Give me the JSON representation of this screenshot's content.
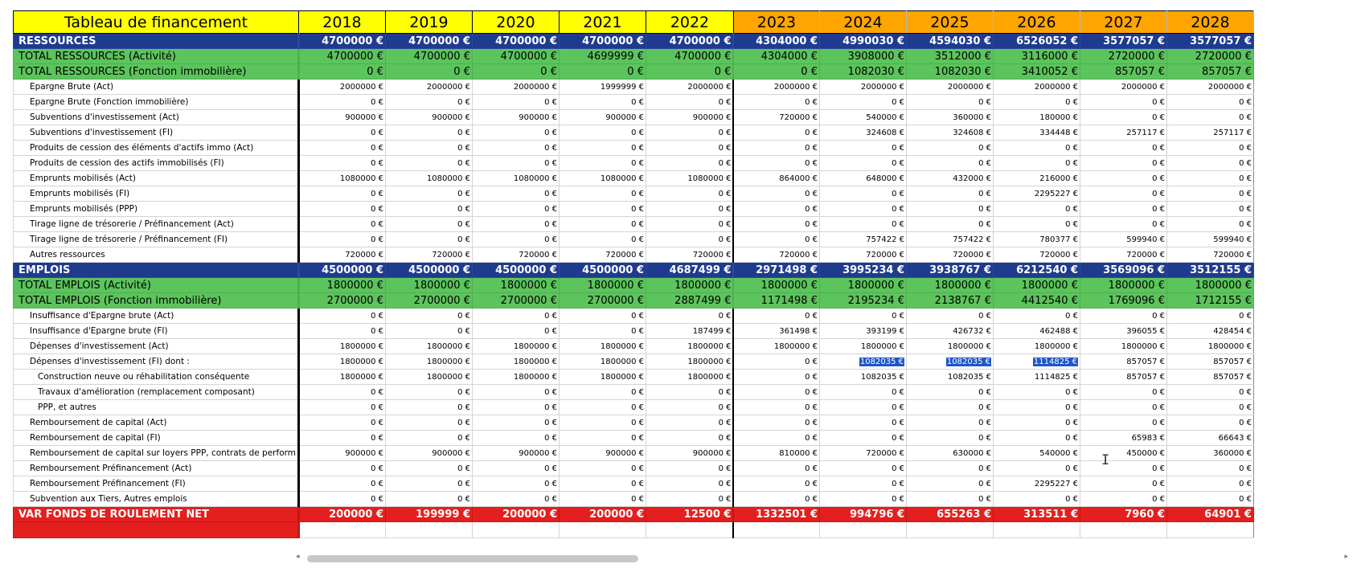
{
  "sheet": {
    "title": "Tableau de financement",
    "years": [
      "2018",
      "2019",
      "2020",
      "2021",
      "2022",
      "2023",
      "2024",
      "2025",
      "2026",
      "2027",
      "2028"
    ],
    "rows": [
      {
        "type": "section",
        "label": "RESSOURCES",
        "values": [
          "4700000 €",
          "4700000 €",
          "4700000 €",
          "4700000 €",
          "4700000 €",
          "4304000 €",
          "4990030 €",
          "4594030 €",
          "6526052 €",
          "3577057 €",
          "3577057 €"
        ]
      },
      {
        "type": "total",
        "label": "TOTAL RESSOURCES (Activité)",
        "values": [
          "4700000 €",
          "4700000 €",
          "4700000 €",
          "4699999 €",
          "4700000 €",
          "4304000 €",
          "3908000 €",
          "3512000 €",
          "3116000 €",
          "2720000 €",
          "2720000 €"
        ]
      },
      {
        "type": "total",
        "label": "TOTAL RESSOURCES (Fonction immobilière)",
        "values": [
          "0 €",
          "0 €",
          "0 €",
          "0 €",
          "0 €",
          "0 €",
          "1082030 €",
          "1082030 €",
          "3410052 €",
          "857057 €",
          "857057 €"
        ]
      },
      {
        "type": "detail",
        "label": "Epargne Brute (Act)",
        "values": [
          "2000000 €",
          "2000000 €",
          "2000000 €",
          "1999999 €",
          "2000000 €",
          "2000000 €",
          "2000000 €",
          "2000000 €",
          "2000000 €",
          "2000000 €",
          "2000000 €"
        ]
      },
      {
        "type": "detail",
        "label": "Epargne Brute (Fonction immobilière)",
        "values": [
          "0 €",
          "0 €",
          "0 €",
          "0 €",
          "0 €",
          "0 €",
          "0 €",
          "0 €",
          "0 €",
          "0 €",
          "0 €"
        ]
      },
      {
        "type": "detail",
        "label": "Subventions d'investissement (Act)",
        "values": [
          "900000 €",
          "900000 €",
          "900000 €",
          "900000 €",
          "900000 €",
          "720000 €",
          "540000 €",
          "360000 €",
          "180000 €",
          "0 €",
          "0 €"
        ]
      },
      {
        "type": "detail",
        "label": "Subventions d'investissement (FI)",
        "values": [
          "0 €",
          "0 €",
          "0 €",
          "0 €",
          "0 €",
          "0 €",
          "324608 €",
          "324608 €",
          "334448 €",
          "257117 €",
          "257117 €"
        ]
      },
      {
        "type": "detail",
        "label": "Produits de cession des éléments d'actifs immo (Act)",
        "values": [
          "0 €",
          "0 €",
          "0 €",
          "0 €",
          "0 €",
          "0 €",
          "0 €",
          "0 €",
          "0 €",
          "0 €",
          "0 €"
        ]
      },
      {
        "type": "detail",
        "label": "Produits de cession des actifs immobilisés (FI)",
        "values": [
          "0 €",
          "0 €",
          "0 €",
          "0 €",
          "0 €",
          "0 €",
          "0 €",
          "0 €",
          "0 €",
          "0 €",
          "0 €"
        ]
      },
      {
        "type": "detail",
        "label": "Emprunts mobilisés (Act)",
        "values": [
          "1080000 €",
          "1080000 €",
          "1080000 €",
          "1080000 €",
          "1080000 €",
          "864000 €",
          "648000 €",
          "432000 €",
          "216000 €",
          "0 €",
          "0 €"
        ]
      },
      {
        "type": "detail",
        "label": "Emprunts mobilisés (FI)",
        "values": [
          "0 €",
          "0 €",
          "0 €",
          "0 €",
          "0 €",
          "0 €",
          "0 €",
          "0 €",
          "2295227 €",
          "0 €",
          "0 €"
        ]
      },
      {
        "type": "detail",
        "label": "Emprunts mobilisés (PPP)",
        "values": [
          "0 €",
          "0 €",
          "0 €",
          "0 €",
          "0 €",
          "0 €",
          "0 €",
          "0 €",
          "0 €",
          "0 €",
          "0 €"
        ]
      },
      {
        "type": "detail",
        "label": "Tirage ligne de trésorerie / Préfinancement (Act)",
        "values": [
          "0 €",
          "0 €",
          "0 €",
          "0 €",
          "0 €",
          "0 €",
          "0 €",
          "0 €",
          "0 €",
          "0 €",
          "0 €"
        ]
      },
      {
        "type": "detail",
        "label": "Tirage ligne de trésorerie / Préfinancement (FI)",
        "values": [
          "0 €",
          "0 €",
          "0 €",
          "0 €",
          "0 €",
          "0 €",
          "757422 €",
          "757422 €",
          "780377 €",
          "599940 €",
          "599940 €"
        ]
      },
      {
        "type": "detail",
        "label": "Autres ressources",
        "values": [
          "720000 €",
          "720000 €",
          "720000 €",
          "720000 €",
          "720000 €",
          "720000 €",
          "720000 €",
          "720000 €",
          "720000 €",
          "720000 €",
          "720000 €"
        ]
      },
      {
        "type": "section",
        "label": "EMPLOIS",
        "values": [
          "4500000 €",
          "4500000 €",
          "4500000 €",
          "4500000 €",
          "4687499 €",
          "2971498 €",
          "3995234 €",
          "3938767 €",
          "6212540 €",
          "3569096 €",
          "3512155 €"
        ]
      },
      {
        "type": "total",
        "label": "TOTAL EMPLOIS (Activité)",
        "values": [
          "1800000 €",
          "1800000 €",
          "1800000 €",
          "1800000 €",
          "1800000 €",
          "1800000 €",
          "1800000 €",
          "1800000 €",
          "1800000 €",
          "1800000 €",
          "1800000 €"
        ]
      },
      {
        "type": "total",
        "label": "TOTAL EMPLOIS (Fonction immobilière)",
        "values": [
          "2700000 €",
          "2700000 €",
          "2700000 €",
          "2700000 €",
          "2887499 €",
          "1171498 €",
          "2195234 €",
          "2138767 €",
          "4412540 €",
          "1769096 €",
          "1712155 €"
        ]
      },
      {
        "type": "detail",
        "label": "Insuffisance d'Epargne brute (Act)",
        "values": [
          "0 €",
          "0 €",
          "0 €",
          "0 €",
          "0 €",
          "0 €",
          "0 €",
          "0 €",
          "0 €",
          "0 €",
          "0 €"
        ]
      },
      {
        "type": "detail",
        "label": "Insuffisance d'Epargne brute (FI)",
        "values": [
          "0 €",
          "0 €",
          "0 €",
          "0 €",
          "187499 €",
          "361498 €",
          "393199 €",
          "426732 €",
          "462488 €",
          "396055 €",
          "428454 €"
        ]
      },
      {
        "type": "detail",
        "label": "Dépenses d'investissement (Act)",
        "values": [
          "1800000 €",
          "1800000 €",
          "1800000 €",
          "1800000 €",
          "1800000 €",
          "1800000 €",
          "1800000 €",
          "1800000 €",
          "1800000 €",
          "1800000 €",
          "1800000 €"
        ]
      },
      {
        "type": "detail",
        "label": "Dépenses d'investissement (FI) dont :",
        "values": [
          "1800000 €",
          "1800000 €",
          "1800000 €",
          "1800000 €",
          "1800000 €",
          "0 €",
          "1082035 €",
          "1082035 €",
          "1114825 €",
          "857057 €",
          "857057 €"
        ],
        "selected": [
          6,
          7,
          8
        ]
      },
      {
        "type": "sub",
        "label": "Construction neuve ou réhabilitation conséquente",
        "values": [
          "1800000 €",
          "1800000 €",
          "1800000 €",
          "1800000 €",
          "1800000 €",
          "0 €",
          "1082035 €",
          "1082035 €",
          "1114825 €",
          "857057 €",
          "857057 €"
        ]
      },
      {
        "type": "sub",
        "label": "Travaux d'amélioration (remplacement composant)",
        "values": [
          "0 €",
          "0 €",
          "0 €",
          "0 €",
          "0 €",
          "0 €",
          "0 €",
          "0 €",
          "0 €",
          "0 €",
          "0 €"
        ]
      },
      {
        "type": "sub",
        "label": "PPP, et autres",
        "values": [
          "0 €",
          "0 €",
          "0 €",
          "0 €",
          "0 €",
          "0 €",
          "0 €",
          "0 €",
          "0 €",
          "0 €",
          "0 €"
        ]
      },
      {
        "type": "detail",
        "label": "Remboursement de capital (Act)",
        "values": [
          "0 €",
          "0 €",
          "0 €",
          "0 €",
          "0 €",
          "0 €",
          "0 €",
          "0 €",
          "0 €",
          "0 €",
          "0 €"
        ]
      },
      {
        "type": "detail",
        "label": "Remboursement de capital (FI)",
        "values": [
          "0 €",
          "0 €",
          "0 €",
          "0 €",
          "0 €",
          "0 €",
          "0 €",
          "0 €",
          "0 €",
          "65983 €",
          "66643 €"
        ]
      },
      {
        "type": "detail",
        "label": "Remboursement de capital sur loyers PPP, contrats de perform",
        "values": [
          "900000 €",
          "900000 €",
          "900000 €",
          "900000 €",
          "900000 €",
          "810000 €",
          "720000 €",
          "630000 €",
          "540000 €",
          "450000 €",
          "360000 €"
        ]
      },
      {
        "type": "detail",
        "label": "Remboursement Préfinancement (Act)",
        "values": [
          "0 €",
          "0 €",
          "0 €",
          "0 €",
          "0 €",
          "0 €",
          "0 €",
          "0 €",
          "0 €",
          "0 €",
          "0 €"
        ]
      },
      {
        "type": "detail",
        "label": "Remboursement Préfinancement (FI)",
        "values": [
          "0 €",
          "0 €",
          "0 €",
          "0 €",
          "0 €",
          "0 €",
          "0 €",
          "0 €",
          "2295227 €",
          "0 €",
          "0 €"
        ]
      },
      {
        "type": "detail",
        "label": "Subvention aux Tiers, Autres emplois",
        "values": [
          "0 €",
          "0 €",
          "0 €",
          "0 €",
          "0 €",
          "0 €",
          "0 €",
          "0 €",
          "0 €",
          "0 €",
          "0 €"
        ]
      },
      {
        "type": "net",
        "label": "VAR FONDS DE ROULEMENT NET",
        "values": [
          "200000 €",
          "199999 €",
          "200000 €",
          "200000 €",
          "12500 €",
          "1332501 €",
          "994796 €",
          "655263 €",
          "313511 €",
          "7960 €",
          "64901 €"
        ]
      }
    ]
  },
  "scrollbar": {
    "left_arrow": "◂",
    "right_arrow": "▸"
  },
  "cursor": {
    "glyph": "I"
  }
}
